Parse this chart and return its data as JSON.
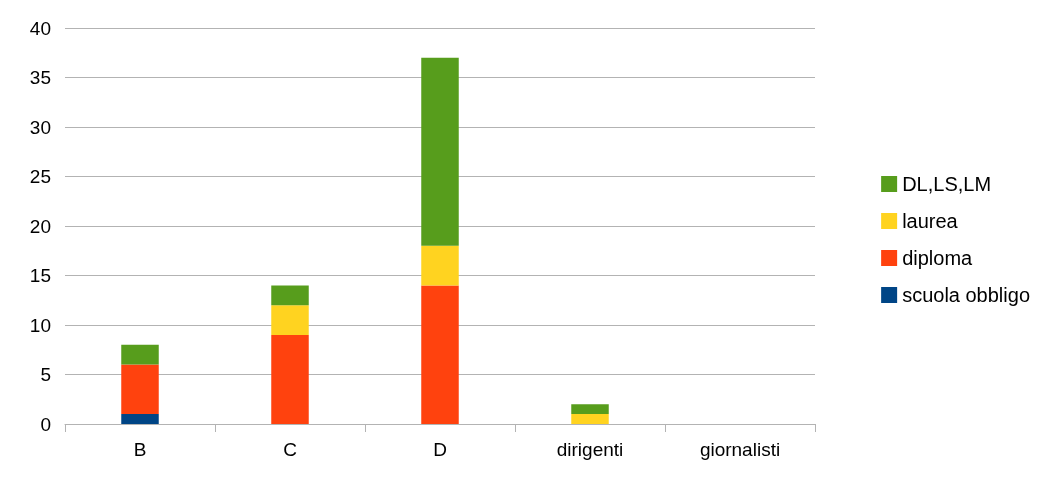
{
  "chart_data": {
    "type": "bar",
    "stacked": true,
    "categories": [
      "B",
      "C",
      "D",
      "dirigenti",
      "giornalisti"
    ],
    "series": [
      {
        "name": "scuola obbligo",
        "color": "#004586",
        "values": [
          1,
          0,
          0,
          0,
          0
        ]
      },
      {
        "name": "diploma",
        "color": "#ff420e",
        "values": [
          5,
          9,
          14,
          0,
          0
        ]
      },
      {
        "name": "laurea",
        "color": "#ffd320",
        "values": [
          0,
          3,
          4,
          1,
          0
        ]
      },
      {
        "name": "DL,LS,LM",
        "color": "#579d1c",
        "values": [
          2,
          2,
          19,
          1,
          0
        ]
      }
    ],
    "ylim": [
      0,
      40
    ],
    "yticks": [
      0,
      5,
      10,
      15,
      20,
      25,
      30,
      35,
      40
    ],
    "grid": "y",
    "legend": "right"
  }
}
